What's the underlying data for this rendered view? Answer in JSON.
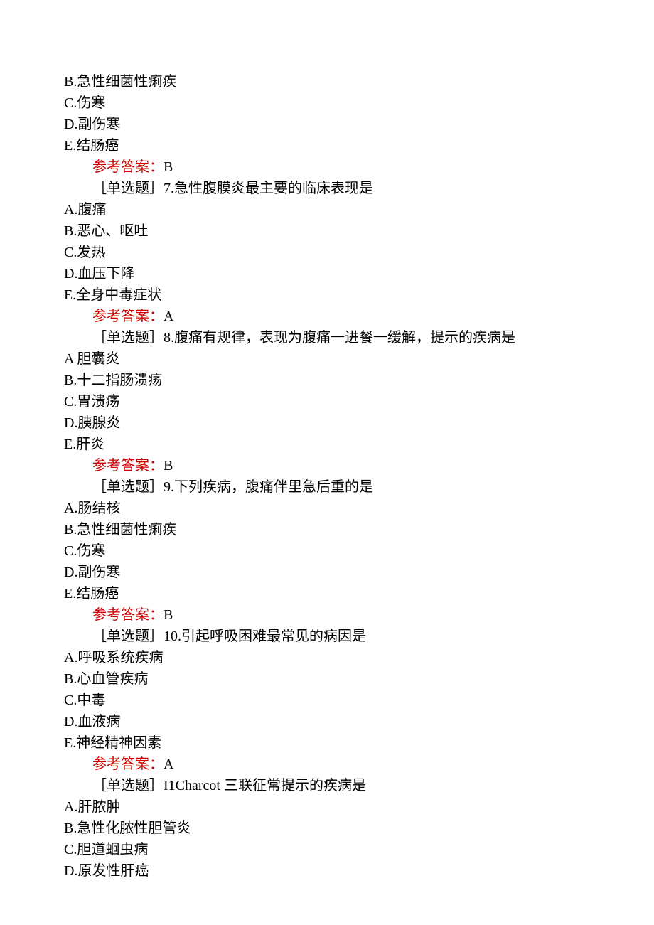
{
  "q6_continued": {
    "options": [
      "B.急性细菌性痢疾",
      "C.伤寒",
      "D.副伤寒",
      "E.结肠癌"
    ],
    "answer_label": "参考答案：",
    "answer": "B"
  },
  "q7": {
    "prompt": "［单选题］7.急性腹膜炎最主要的临床表现是",
    "options": [
      "A.腹痛",
      "B.恶心、呕吐",
      "C.发热",
      "D.血压下降",
      "E.全身中毒症状"
    ],
    "answer_label": "参考答案：",
    "answer": "A"
  },
  "q8": {
    "prompt": "［单选题］8.腹痛有规律，表现为腹痛一进餐一缓解，提示的疾病是",
    "options": [
      "A 胆囊炎",
      "B.十二指肠溃疡",
      "C.胃溃疡",
      "D.胰腺炎",
      "E.肝炎"
    ],
    "answer_label": "参考答案：",
    "answer": "B"
  },
  "q9": {
    "prompt": "［单选题］9.下列疾病，腹痛伴里急后重的是",
    "options": [
      "A.肠结核",
      "B.急性细菌性痢疾",
      "C.伤寒",
      "D.副伤寒",
      "E.结肠癌"
    ],
    "answer_label": "参考答案：",
    "answer": "B"
  },
  "q10": {
    "prompt": "［单选题］10.引起呼吸困难最常见的病因是",
    "options": [
      "A.呼吸系统疾病",
      "B.心血管疾病",
      "C.中毒",
      "D.血液病",
      "E.神经精神因素"
    ],
    "answer_label": "参考答案：",
    "answer": "A"
  },
  "q11": {
    "prompt": "［单选题］I1Charcot 三联征常提示的疾病是",
    "options": [
      "A.肝脓肿",
      "B.急性化脓性胆管炎",
      "C.胆道蛔虫病",
      "D.原发性肝癌"
    ]
  }
}
